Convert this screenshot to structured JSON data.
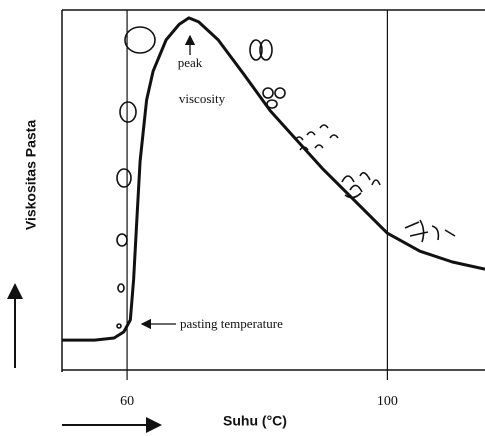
{
  "chart_data": {
    "type": "line",
    "x_label": "Suhu (°C)",
    "y_label": "Viskositas Pasta",
    "x": [
      50,
      55,
      58,
      59.5,
      60.5,
      61,
      61.5,
      62,
      63,
      64,
      66,
      68,
      69.5,
      71,
      74,
      78,
      82,
      86,
      90,
      95,
      100,
      105,
      110,
      115
    ],
    "series": [
      {
        "color": "#111111",
        "values": [
          8.3,
          8.3,
          8.9,
          10.6,
          13.9,
          25,
          41.7,
          58,
          75,
          83,
          91.7,
          96,
          97.8,
          96.7,
          91.7,
          82,
          72,
          64,
          56,
          47,
          38,
          33,
          30,
          28
        ]
      }
    ],
    "xlim": [
      50,
      115
    ],
    "ylim": [
      0,
      100
    ],
    "xticks": [
      60,
      100
    ],
    "grid": true,
    "annotations": [
      [
        "peak",
        "viscosity"
      ],
      [
        "pasting temperature"
      ]
    ]
  }
}
